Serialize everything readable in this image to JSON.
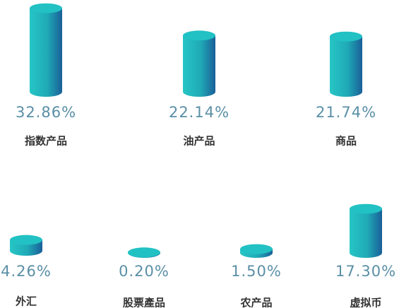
{
  "chart_data": {
    "type": "bar",
    "categories": [
      "指数产品",
      "油产品",
      "商品",
      "外汇",
      "股票產品",
      "农产品",
      "虚拟币"
    ],
    "values": [
      32.86,
      22.14,
      21.74,
      4.26,
      0.2,
      1.5,
      17.3
    ],
    "value_labels": [
      "32.86%",
      "22.14%",
      "21.74%",
      "4.26%",
      "0.20%",
      "1.50%",
      "17.30%"
    ],
    "color": "#22c1c3"
  }
}
